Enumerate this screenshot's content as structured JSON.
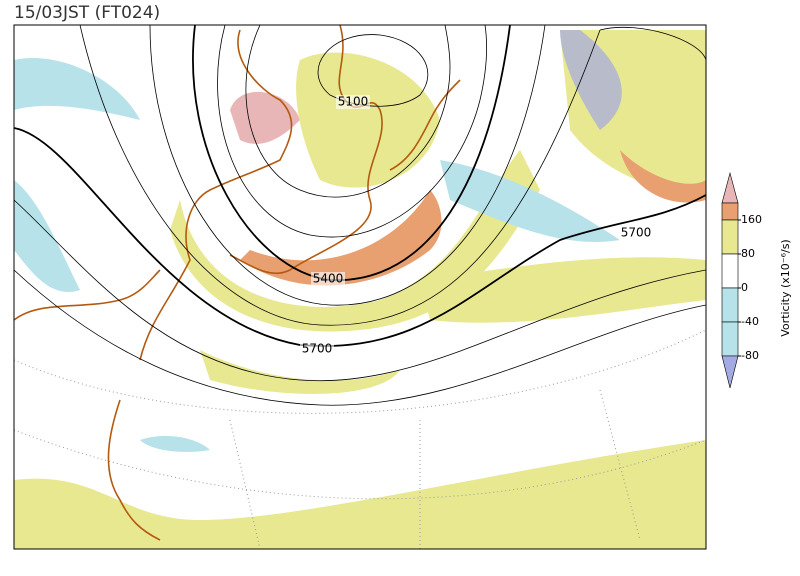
{
  "header": {
    "title": "15/03JST (FT024)"
  },
  "contour_labels": [
    "5100",
    "5400",
    "5700",
    "5700"
  ],
  "colorbar": {
    "title": "Vorticity (x10⁻⁶/s)",
    "ticks": [
      160,
      80,
      0,
      -40,
      -80
    ],
    "colors": [
      "#e8b6b6",
      "#e8a070",
      "#e8e890",
      "#ffffff",
      "#b8e2ea",
      "#a4aae2"
    ]
  }
}
